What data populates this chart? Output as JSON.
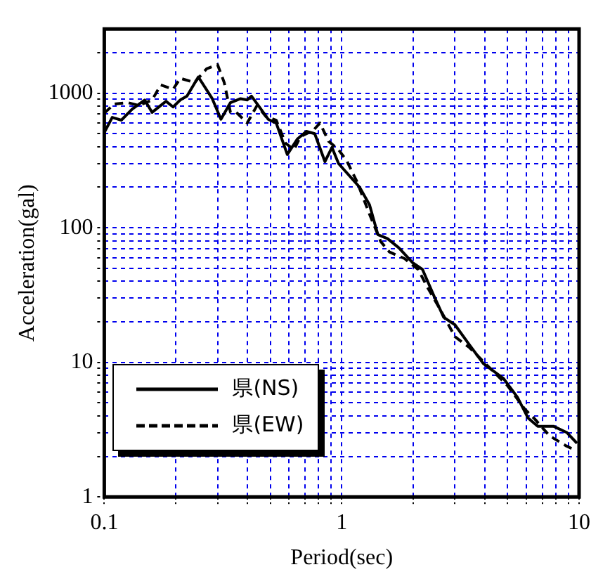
{
  "chart_data": {
    "type": "line",
    "xlabel": "Period(sec)",
    "ylabel": "Acceleration(gal)",
    "log": "xy",
    "grid": true,
    "legend": "bottom left",
    "marker": "none",
    "xlim": [
      0.1,
      10
    ],
    "ylim": [
      1,
      3000
    ],
    "xticks": [
      0.1,
      {
        "value": 0.2,
        "label": null
      },
      {
        "value": 0.3,
        "label": null
      },
      {
        "value": 0.4,
        "label": null
      },
      {
        "value": 0.5,
        "label": null
      },
      {
        "value": 0.6,
        "label": null
      },
      {
        "value": 0.7,
        "label": null
      },
      {
        "value": 0.8,
        "label": null
      },
      {
        "value": 0.9,
        "label": null
      },
      1,
      {
        "value": 2,
        "label": null
      },
      {
        "value": 3,
        "label": null
      },
      {
        "value": 4,
        "label": null
      },
      {
        "value": 5,
        "label": null
      },
      {
        "value": 6,
        "label": null
      },
      {
        "value": 7,
        "label": null
      },
      {
        "value": 8,
        "label": null
      },
      {
        "value": 9,
        "label": null
      },
      10
    ],
    "yticks": [
      1,
      {
        "value": 2,
        "label": null
      },
      {
        "value": 3,
        "label": null
      },
      {
        "value": 4,
        "label": null
      },
      {
        "value": 5,
        "label": null
      },
      {
        "value": 6,
        "label": null
      },
      {
        "value": 7,
        "label": null
      },
      {
        "value": 8,
        "label": null
      },
      {
        "value": 9,
        "label": null
      },
      10,
      {
        "value": 20,
        "label": null
      },
      {
        "value": 30,
        "label": null
      },
      {
        "value": 40,
        "label": null
      },
      {
        "value": 50,
        "label": null
      },
      {
        "value": 60,
        "label": null
      },
      {
        "value": 70,
        "label": null
      },
      {
        "value": 80,
        "label": null
      },
      {
        "value": 90,
        "label": null
      },
      100,
      {
        "value": 200,
        "label": null
      },
      {
        "value": 300,
        "label": null
      },
      {
        "value": 400,
        "label": null
      },
      {
        "value": 500,
        "label": null
      },
      {
        "value": 600,
        "label": null
      },
      {
        "value": 700,
        "label": null
      },
      {
        "value": 800,
        "label": null
      },
      {
        "value": 900,
        "label": null
      },
      1000,
      {
        "value": 2000,
        "label": null
      }
    ],
    "series": [
      {
        "name": "県(NS)",
        "color": "#000000",
        "line_style": "solid",
        "x": [
          0.1,
          0.108,
          0.118,
          0.131,
          0.148,
          0.159,
          0.182,
          0.195,
          0.209,
          0.223,
          0.249,
          0.285,
          0.31,
          0.34,
          0.375,
          0.4,
          0.417,
          0.45,
          0.49,
          0.53,
          0.59,
          0.65,
          0.71,
          0.77,
          0.85,
          0.91,
          0.97,
          1.19,
          1.31,
          1.42,
          1.56,
          1.74,
          1.99,
          2.19,
          2.45,
          2.69,
          3.0,
          3.45,
          3.95,
          4.8,
          5.5,
          6.1,
          6.7,
          7.8,
          8.9,
          9.8
        ],
        "values": [
          510,
          660,
          630,
          760,
          890,
          720,
          870,
          790,
          890,
          950,
          1320,
          910,
          640,
          850,
          910,
          890,
          950,
          790,
          640,
          600,
          350,
          455,
          520,
          500,
          310,
          395,
          300,
          200,
          148,
          89,
          83,
          71,
          55,
          49,
          31,
          21.6,
          19,
          13.5,
          9.8,
          7.6,
          5.5,
          3.85,
          3.35,
          3.35,
          3.0,
          2.5
        ]
      },
      {
        "name": "県(EW)",
        "color": "#000000",
        "line_style": "dashed",
        "x": [
          0.1,
          0.11,
          0.126,
          0.14,
          0.159,
          0.173,
          0.195,
          0.209,
          0.24,
          0.27,
          0.3,
          0.32,
          0.34,
          0.36,
          0.4,
          0.44,
          0.48,
          0.53,
          0.58,
          0.63,
          0.67,
          0.76,
          0.81,
          0.88,
          0.97,
          1.05,
          1.16,
          1.31,
          1.46,
          1.59,
          1.84,
          2.1,
          2.28,
          2.59,
          3.0,
          3.45,
          4.2,
          5.0,
          5.9,
          6.5,
          7.5,
          8.8,
          9.5
        ],
        "values": [
          710,
          830,
          850,
          810,
          890,
          1150,
          1070,
          1290,
          1200,
          1520,
          1630,
          1200,
          720,
          720,
          600,
          810,
          670,
          630,
          425,
          380,
          475,
          530,
          600,
          440,
          380,
          315,
          220,
          126,
          79,
          66,
          59,
          49,
          37,
          25,
          15.5,
          12.9,
          9.1,
          6.7,
          4.5,
          3.8,
          2.85,
          2.4,
          2.25
        ]
      }
    ]
  }
}
